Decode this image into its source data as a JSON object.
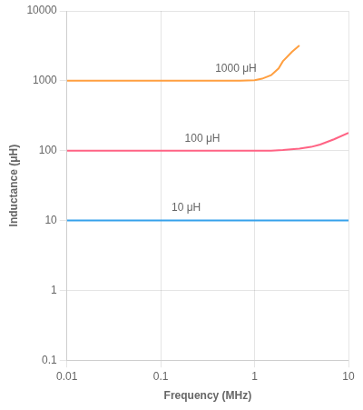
{
  "chart_data": {
    "type": "line",
    "xlabel": "Frequency (MHz)",
    "ylabel": "Inductance (μH)",
    "log": true,
    "grid": true,
    "xlim": [
      0.01,
      10
    ],
    "ylim": [
      0.1,
      10000
    ],
    "xticks": [
      0.01,
      0.1,
      1,
      10
    ],
    "yticks": [
      0.1,
      1,
      10,
      100,
      1000,
      10000
    ],
    "series": [
      {
        "x": [
          0.01,
          0.05,
          0.1,
          0.2,
          0.5,
          1.0,
          2.0,
          5.0,
          10.0
        ],
        "values": [
          10,
          10,
          10,
          10,
          10,
          10,
          10,
          10,
          10
        ]
      },
      {
        "x": [
          0.01,
          0.1,
          0.2,
          0.5,
          0.7,
          1.0,
          1.5,
          2.0,
          3.0,
          4.0,
          5.0,
          7.0,
          10.0
        ],
        "values": [
          100,
          100,
          100,
          100,
          100,
          100,
          100,
          102,
          107,
          113,
          122,
          145,
          180
        ]
      },
      {
        "x": [
          0.01,
          0.1,
          0.2,
          0.5,
          0.7,
          1.0,
          1.2,
          1.5,
          1.8,
          2.0,
          2.5,
          3.0
        ],
        "values": [
          1000,
          1000,
          1000,
          1000,
          1000,
          1020,
          1070,
          1200,
          1500,
          1900,
          2600,
          3200
        ]
      }
    ],
    "annotations": [
      {
        "text": "10 μH",
        "x": 0.13,
        "y": 12.5
      },
      {
        "text": "100 μH",
        "x": 0.18,
        "y": 125
      },
      {
        "text": "1000 μH",
        "x": 0.38,
        "y": 1250
      }
    ]
  }
}
